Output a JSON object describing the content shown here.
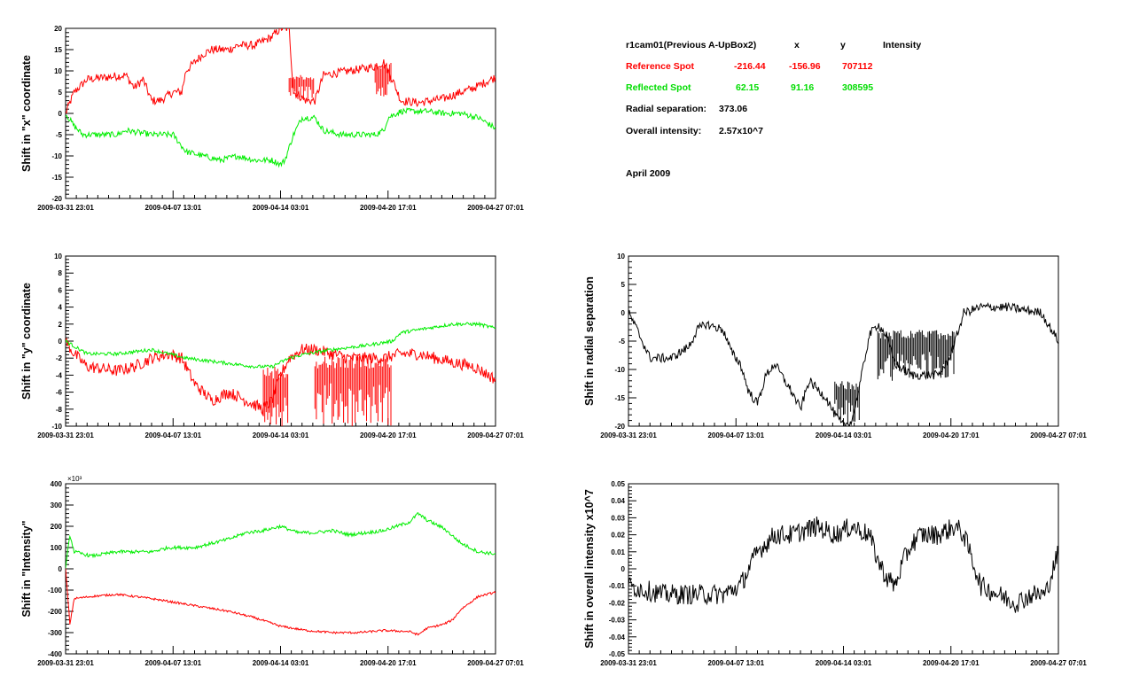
{
  "info": {
    "header_name": "r1cam01(Previous A-UpBox2)",
    "header_x": "x",
    "header_y": "y",
    "header_intensity": "Intensity",
    "reference_label": "Reference Spot",
    "reference_x": "-216.44",
    "reference_y": "-156.96",
    "reference_intensity": "707112",
    "reflected_label": "Reflected Spot",
    "reflected_x": "62.15",
    "reflected_y": "91.16",
    "reflected_intensity": "308595",
    "radial_label": "Radial separation:",
    "radial_value": "373.06",
    "overall_label": "Overall intensity:",
    "overall_value": "2.57x10^7",
    "period": "April 2009"
  },
  "colors": {
    "reference": "#ff0000",
    "reflected": "#00ee00",
    "single": "#000000"
  },
  "chart_data": [
    {
      "type": "line",
      "ylabel": "Shift in \"x\" coordinate",
      "ylim": [
        -20,
        20
      ],
      "yticks": [
        "20",
        "15",
        "10",
        "5",
        "0",
        "-5",
        "-10",
        "-15",
        "-20"
      ],
      "xticks": [
        "2009-03-31 23:01",
        "2009-04-07 13:01",
        "2009-04-14 03:01",
        "2009-04-20 17:01",
        "2009-04-27 07:01"
      ],
      "y_multiplier": "",
      "series": [
        {
          "color": "reference",
          "noise": 1.0,
          "points": [
            [
              0,
              0
            ],
            [
              2,
              5
            ],
            [
              5,
              8
            ],
            [
              14,
              9
            ],
            [
              16,
              6
            ],
            [
              18,
              8
            ],
            [
              20,
              3
            ],
            [
              22,
              3
            ],
            [
              25,
              5
            ],
            [
              27,
              5
            ],
            [
              28,
              10
            ],
            [
              32,
              14
            ],
            [
              34,
              15
            ],
            [
              38,
              15
            ],
            [
              40,
              16
            ],
            [
              44,
              16
            ],
            [
              46,
              17
            ],
            [
              48,
              18
            ],
            [
              50,
              20
            ],
            [
              52,
              20
            ],
            [
              53,
              5
            ],
            [
              56,
              3
            ],
            [
              58,
              3
            ],
            [
              60,
              9
            ],
            [
              66,
              10
            ],
            [
              72,
              11
            ],
            [
              74,
              12
            ],
            [
              76,
              8
            ],
            [
              78,
              3
            ],
            [
              82,
              2.5
            ],
            [
              88,
              3.5
            ],
            [
              92,
              5
            ],
            [
              95,
              6
            ],
            [
              97,
              7
            ],
            [
              100,
              8.5
            ]
          ]
        },
        {
          "color": "reflected",
          "noise": 0.7,
          "points": [
            [
              0,
              0
            ],
            [
              2,
              -3
            ],
            [
              4,
              -5
            ],
            [
              12,
              -5
            ],
            [
              14,
              -4
            ],
            [
              20,
              -5
            ],
            [
              25,
              -5
            ],
            [
              28,
              -9
            ],
            [
              32,
              -10
            ],
            [
              36,
              -11
            ],
            [
              40,
              -10
            ],
            [
              44,
              -11
            ],
            [
              48,
              -11
            ],
            [
              50,
              -12
            ],
            [
              51,
              -11
            ],
            [
              53,
              -5
            ],
            [
              55,
              -1
            ],
            [
              58,
              -1
            ],
            [
              60,
              -4
            ],
            [
              64,
              -5
            ],
            [
              72,
              -5
            ],
            [
              74,
              -4
            ],
            [
              75,
              -1
            ],
            [
              78,
              0.5
            ],
            [
              84,
              0.5
            ],
            [
              88,
              0
            ],
            [
              92,
              0
            ],
            [
              96,
              -1
            ],
            [
              100,
              -3.5
            ]
          ]
        }
      ],
      "spikes": [
        {
          "color": "reference",
          "from": 52,
          "to": 58,
          "lo": 3,
          "hi": 9
        },
        {
          "color": "reference",
          "from": 72,
          "to": 76,
          "lo": 4,
          "hi": 12
        }
      ]
    },
    {
      "type": "line",
      "ylabel": "Shift in \"y\" coordinate",
      "ylim": [
        -10,
        10
      ],
      "yticks": [
        "10",
        "8",
        "6",
        "4",
        "2",
        "0",
        "-2",
        "-4",
        "-6",
        "-8",
        "-10"
      ],
      "xticks": [
        "2009-03-31 23:01",
        "2009-04-07 13:01",
        "2009-04-14 03:01",
        "2009-04-20 17:01",
        "2009-04-27 07:01"
      ],
      "y_multiplier": "",
      "series": [
        {
          "color": "reference",
          "noise": 0.7,
          "points": [
            [
              0,
              0
            ],
            [
              2,
              -1.5
            ],
            [
              5,
              -3
            ],
            [
              12,
              -3.5
            ],
            [
              16,
              -3
            ],
            [
              20,
              -2
            ],
            [
              24,
              -1.5
            ],
            [
              27,
              -2
            ],
            [
              30,
              -5
            ],
            [
              34,
              -7
            ],
            [
              38,
              -6
            ],
            [
              42,
              -7
            ],
            [
              46,
              -8
            ],
            [
              48,
              -7
            ],
            [
              50,
              -4
            ],
            [
              52,
              -2
            ],
            [
              55,
              -1
            ],
            [
              58,
              -1
            ],
            [
              62,
              -1.5
            ],
            [
              66,
              -2
            ],
            [
              70,
              -2
            ],
            [
              74,
              -2
            ],
            [
              78,
              -1.5
            ],
            [
              82,
              -1.5
            ],
            [
              86,
              -2
            ],
            [
              90,
              -2.5
            ],
            [
              95,
              -3
            ],
            [
              100,
              -4.5
            ]
          ]
        },
        {
          "color": "reflected",
          "noise": 0.2,
          "points": [
            [
              0,
              0
            ],
            [
              5,
              -1.5
            ],
            [
              12,
              -1.5
            ],
            [
              20,
              -1
            ],
            [
              28,
              -2
            ],
            [
              36,
              -2.5
            ],
            [
              44,
              -3
            ],
            [
              48,
              -3
            ],
            [
              52,
              -2
            ],
            [
              56,
              -1.5
            ],
            [
              62,
              -1
            ],
            [
              70,
              -0.5
            ],
            [
              76,
              0
            ],
            [
              78,
              1
            ],
            [
              84,
              1.5
            ],
            [
              90,
              2
            ],
            [
              96,
              2
            ],
            [
              100,
              1.5
            ]
          ]
        }
      ],
      "spikes": [
        {
          "color": "reference",
          "from": 46,
          "to": 52,
          "lo": -10,
          "hi": -3
        },
        {
          "color": "reference",
          "from": 58,
          "to": 76,
          "lo": -10,
          "hi": -1.5
        }
      ]
    },
    {
      "type": "line",
      "ylabel": "Shift in \"Intensity\"",
      "ylim": [
        -400,
        400
      ],
      "yticks": [
        "400",
        "300",
        "200",
        "100",
        "0",
        "-100",
        "-200",
        "-300",
        "-400"
      ],
      "xticks": [
        "2009-03-31 23:01",
        "2009-04-07 13:01",
        "2009-04-14 03:01",
        "2009-04-20 17:01",
        "2009-04-27 07:01"
      ],
      "y_multiplier": "×10³",
      "series": [
        {
          "color": "reference",
          "noise": 5,
          "points": [
            [
              0,
              0
            ],
            [
              1,
              -260
            ],
            [
              2,
              -140
            ],
            [
              6,
              -130
            ],
            [
              12,
              -120
            ],
            [
              20,
              -140
            ],
            [
              26,
              -160
            ],
            [
              32,
              -180
            ],
            [
              38,
              -200
            ],
            [
              44,
              -230
            ],
            [
              50,
              -270
            ],
            [
              56,
              -290
            ],
            [
              62,
              -300
            ],
            [
              68,
              -300
            ],
            [
              74,
              -290
            ],
            [
              80,
              -295
            ],
            [
              82,
              -310
            ],
            [
              84,
              -280
            ],
            [
              88,
              -260
            ],
            [
              90,
              -240
            ],
            [
              92,
              -190
            ],
            [
              96,
              -130
            ],
            [
              100,
              -110
            ]
          ]
        },
        {
          "color": "reflected",
          "noise": 8,
          "points": [
            [
              0,
              0
            ],
            [
              1,
              160
            ],
            [
              2,
              80
            ],
            [
              6,
              60
            ],
            [
              12,
              80
            ],
            [
              20,
              80
            ],
            [
              24,
              100
            ],
            [
              30,
              100
            ],
            [
              34,
              120
            ],
            [
              38,
              140
            ],
            [
              42,
              170
            ],
            [
              46,
              180
            ],
            [
              50,
              200
            ],
            [
              54,
              170
            ],
            [
              58,
              170
            ],
            [
              62,
              180
            ],
            [
              66,
              160
            ],
            [
              70,
              170
            ],
            [
              74,
              180
            ],
            [
              80,
              220
            ],
            [
              82,
              260
            ],
            [
              84,
              230
            ],
            [
              88,
              190
            ],
            [
              92,
              120
            ],
            [
              96,
              80
            ],
            [
              100,
              70
            ]
          ]
        }
      ],
      "spikes": []
    },
    {
      "type": "line",
      "ylabel": "Shift in radial separation",
      "ylim": [
        -20,
        10
      ],
      "yticks": [
        "10",
        "5",
        "0",
        "-5",
        "-10",
        "-15",
        "-20"
      ],
      "xticks": [
        "2009-03-31 23:01",
        "2009-04-07 13:01",
        "2009-04-14 03:01",
        "2009-04-20 17:01",
        "2009-04-27 07:01"
      ],
      "y_multiplier": "",
      "series": [
        {
          "color": "single",
          "noise": 0.8,
          "points": [
            [
              0,
              0
            ],
            [
              2,
              -3
            ],
            [
              5,
              -8
            ],
            [
              10,
              -8
            ],
            [
              14,
              -6
            ],
            [
              16,
              -3
            ],
            [
              18,
              -2
            ],
            [
              22,
              -3
            ],
            [
              24,
              -7
            ],
            [
              26,
              -9
            ],
            [
              28,
              -14
            ],
            [
              30,
              -16
            ],
            [
              32,
              -11
            ],
            [
              34,
              -9
            ],
            [
              38,
              -14
            ],
            [
              40,
              -17
            ],
            [
              42,
              -12
            ],
            [
              46,
              -15
            ],
            [
              48,
              -18
            ],
            [
              50,
              -20
            ],
            [
              52,
              -19
            ],
            [
              54,
              -12
            ],
            [
              56,
              -4
            ],
            [
              58,
              -2
            ],
            [
              60,
              -4
            ],
            [
              62,
              -9
            ],
            [
              66,
              -11
            ],
            [
              72,
              -11
            ],
            [
              74,
              -9
            ],
            [
              76,
              -5
            ],
            [
              78,
              0
            ],
            [
              82,
              1
            ],
            [
              88,
              1
            ],
            [
              92,
              0.5
            ],
            [
              96,
              0
            ],
            [
              100,
              -5
            ]
          ]
        }
      ],
      "spikes": [
        {
          "color": "single",
          "from": 48,
          "to": 54,
          "lo": -20,
          "hi": -12
        },
        {
          "color": "single",
          "from": 58,
          "to": 76,
          "lo": -12,
          "hi": -3
        }
      ]
    },
    {
      "type": "line",
      "ylabel": "Shift in overall intensity x10^7",
      "ylim": [
        -0.05,
        0.05
      ],
      "yticks": [
        "0.05",
        "0.04",
        "0.03",
        "0.02",
        "0.01",
        "0",
        "-0.01",
        "-0.02",
        "-0.03",
        "-0.04",
        "-0.05"
      ],
      "xticks": [
        "2009-03-31 23:01",
        "2009-04-07 13:01",
        "2009-04-14 03:01",
        "2009-04-20 17:01",
        "2009-04-27 07:01"
      ],
      "y_multiplier": "",
      "series": [
        {
          "color": "single",
          "noise": 0.006,
          "points": [
            [
              0,
              -0.01
            ],
            [
              8,
              -0.015
            ],
            [
              14,
              -0.015
            ],
            [
              22,
              -0.015
            ],
            [
              26,
              -0.01
            ],
            [
              30,
              0.01
            ],
            [
              34,
              0.02
            ],
            [
              38,
              0.02
            ],
            [
              44,
              0.025
            ],
            [
              48,
              0.02
            ],
            [
              52,
              0.025
            ],
            [
              56,
              0.02
            ],
            [
              58,
              0.005
            ],
            [
              60,
              -0.005
            ],
            [
              62,
              -0.01
            ],
            [
              64,
              0.005
            ],
            [
              66,
              0.015
            ],
            [
              68,
              0.02
            ],
            [
              72,
              0.02
            ],
            [
              76,
              0.025
            ],
            [
              78,
              0.02
            ],
            [
              80,
              0.005
            ],
            [
              82,
              -0.01
            ],
            [
              86,
              -0.015
            ],
            [
              90,
              -0.02
            ],
            [
              94,
              -0.015
            ],
            [
              97,
              -0.015
            ],
            [
              100,
              0.01
            ]
          ]
        }
      ],
      "spikes": []
    }
  ]
}
